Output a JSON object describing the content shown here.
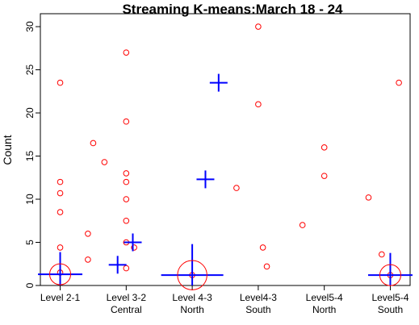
{
  "chart_data": {
    "type": "scatter",
    "title": "Streaming K-means:March 18 - 24",
    "xlabel": "",
    "ylabel": "Count",
    "ylim": [
      0,
      31.5
    ],
    "xlim": [
      0.7,
      6.3
    ],
    "y_ticks": [
      0,
      5,
      10,
      15,
      20,
      25,
      30
    ],
    "x_ticks": [
      {
        "value": 1,
        "lines": [
          "Level 2-1"
        ]
      },
      {
        "value": 2,
        "lines": [
          "Level 3-2",
          "Central"
        ]
      },
      {
        "value": 3,
        "lines": [
          "Level 4-3",
          "North"
        ]
      },
      {
        "value": 4,
        "lines": [
          "Level4-3",
          "South"
        ]
      },
      {
        "value": 5,
        "lines": [
          "Level5-4",
          "North"
        ]
      },
      {
        "value": 6,
        "lines": [
          "Level5-4",
          "South"
        ]
      }
    ],
    "colors": {
      "points": "#ff0000",
      "centers": "#0000ff"
    },
    "points": [
      {
        "x": 1.0,
        "y": 23.5
      },
      {
        "x": 1.0,
        "y": 12.0
      },
      {
        "x": 1.0,
        "y": 10.7
      },
      {
        "x": 1.0,
        "y": 8.5
      },
      {
        "x": 1.0,
        "y": 4.4
      },
      {
        "x": 1.0,
        "y": 1.5
      },
      {
        "x": 1.42,
        "y": 6.0
      },
      {
        "x": 1.42,
        "y": 3.0
      },
      {
        "x": 1.5,
        "y": 16.5
      },
      {
        "x": 1.67,
        "y": 14.3
      },
      {
        "x": 2.0,
        "y": 27.0
      },
      {
        "x": 2.0,
        "y": 19.0
      },
      {
        "x": 2.0,
        "y": 13.0
      },
      {
        "x": 2.0,
        "y": 12.0
      },
      {
        "x": 2.0,
        "y": 10.0
      },
      {
        "x": 2.0,
        "y": 7.5
      },
      {
        "x": 2.0,
        "y": 5.0
      },
      {
        "x": 2.0,
        "y": 2.0
      },
      {
        "x": 2.12,
        "y": 4.4
      },
      {
        "x": 3.0,
        "y": 1.2
      },
      {
        "x": 3.67,
        "y": 11.3
      },
      {
        "x": 4.0,
        "y": 30.0
      },
      {
        "x": 4.0,
        "y": 21.0
      },
      {
        "x": 4.07,
        "y": 4.4
      },
      {
        "x": 4.13,
        "y": 2.2
      },
      {
        "x": 4.67,
        "y": 7.0
      },
      {
        "x": 5.0,
        "y": 16.0
      },
      {
        "x": 5.0,
        "y": 12.7
      },
      {
        "x": 5.67,
        "y": 10.2
      },
      {
        "x": 5.87,
        "y": 3.6
      },
      {
        "x": 6.0,
        "y": 1.2
      },
      {
        "x": 6.13,
        "y": 23.5
      }
    ],
    "centers": [
      {
        "x": 1.0,
        "y": 1.3,
        "size": 2.5,
        "circle": true
      },
      {
        "x": 1.87,
        "y": 2.4,
        "size": 1.0,
        "circle": false
      },
      {
        "x": 2.1,
        "y": 5.0,
        "size": 1.0,
        "circle": false
      },
      {
        "x": 3.0,
        "y": 1.2,
        "size": 3.5,
        "circle": true
      },
      {
        "x": 3.2,
        "y": 12.3,
        "size": 1.0,
        "circle": false
      },
      {
        "x": 3.4,
        "y": 23.5,
        "size": 1.0,
        "circle": false
      },
      {
        "x": 6.0,
        "y": 1.2,
        "size": 2.5,
        "circle": true
      }
    ]
  }
}
